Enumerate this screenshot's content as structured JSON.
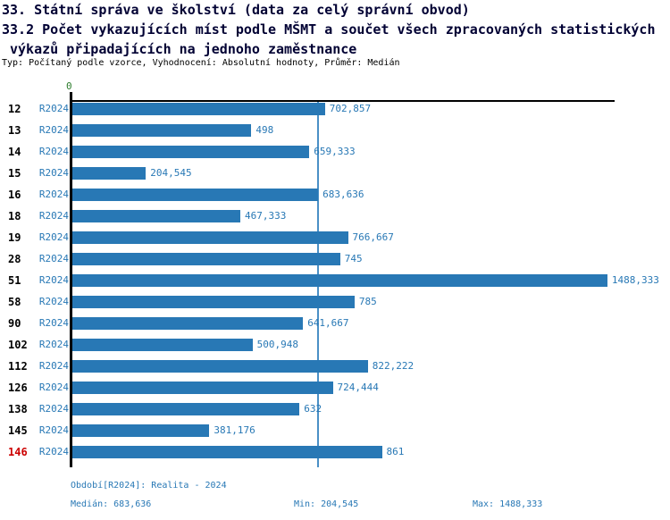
{
  "chart_data": {
    "type": "bar",
    "orientation": "horizontal",
    "title_lines": [
      "33. Státní správa ve školství (data za celý správní obvod)",
      "33.2 Počet vykazujících míst podle MŠMT a součet všech zpracovaných statistických",
      "výkazů připadajících na jednoho zaměstnance"
    ],
    "subtitle": "Typ: Počítaný podle vzorce, Vyhodnocení: Absolutní hodnoty, Průměr: Medián",
    "categories": [
      "12",
      "13",
      "14",
      "15",
      "16",
      "18",
      "19",
      "28",
      "51",
      "58",
      "90",
      "102",
      "112",
      "126",
      "138",
      "145",
      "146"
    ],
    "series_label": "R2024",
    "values": [
      702.857,
      498,
      659.333,
      204.545,
      683.636,
      467.333,
      766.667,
      745,
      1488.333,
      785,
      641.667,
      500.948,
      822.222,
      724.444,
      632,
      381.176,
      861
    ],
    "value_labels": [
      "702,857",
      "498",
      "659,333",
      "204,545",
      "683,636",
      "467,333",
      "766,667",
      "745",
      "1488,333",
      "785",
      "641,667",
      "500,948",
      "822,222",
      "724,444",
      "632",
      "381,176",
      "861"
    ],
    "axis_origin_label": "0",
    "xlim": [
      0,
      1511
    ],
    "median_value": 683.636,
    "highlight_category": "146",
    "bar_color": "#2878b5",
    "highlight_color": "#cc0000",
    "median_line_color": "#4a90c6",
    "grid": "median line only",
    "legend_position": "bottom",
    "annotations": {
      "period": "Období[R2024]: Realita - 2024",
      "median": "Medián: 683,636",
      "min": "Min: 204,545",
      "max": "Max: 1488,333"
    }
  }
}
